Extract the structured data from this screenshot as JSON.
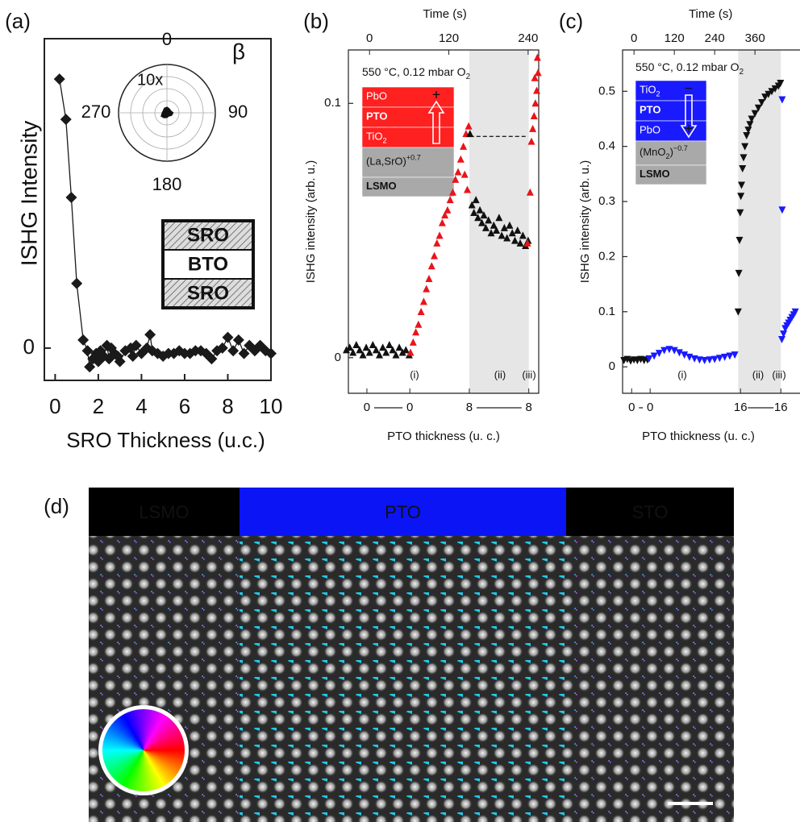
{
  "chart_data": [
    {
      "type": "line",
      "label": "(a)",
      "x_label": "SRO Thickness (u.c.)",
      "y_label": "ISHG Intensity",
      "xlim": [
        -0.5,
        10
      ],
      "xticks": [
        0,
        2,
        4,
        6,
        8,
        10
      ],
      "ylim": [
        -0.12,
        1.15
      ],
      "yticks": [
        0
      ],
      "series": [
        {
          "color": "#1a1a1a",
          "marker": "diamond",
          "x": [
            0.2,
            0.5,
            0.75,
            1.0,
            1.3,
            1.5,
            1.6,
            1.75,
            1.9,
            2.0,
            2.1,
            2.25,
            2.4,
            2.5,
            2.6,
            2.75,
            2.9,
            3.0,
            3.25,
            3.5,
            3.6,
            3.75,
            4.0,
            4.25,
            4.4,
            4.5,
            4.75,
            5.0,
            5.25,
            5.5,
            5.75,
            6.0,
            6.25,
            6.5,
            6.75,
            7.0,
            7.25,
            7.5,
            7.75,
            8.0,
            8.25,
            8.5,
            8.75,
            9.0,
            9.25,
            9.5,
            9.75,
            10.0
          ],
          "values": [
            1.0,
            0.85,
            0.56,
            0.24,
            0.03,
            -0.01,
            -0.07,
            -0.04,
            -0.02,
            -0.05,
            -0.01,
            -0.03,
            0.01,
            -0.04,
            0.0,
            -0.02,
            -0.03,
            -0.05,
            -0.01,
            0.0,
            -0.03,
            0.01,
            -0.02,
            0.0,
            0.05,
            -0.01,
            -0.02,
            -0.03,
            -0.02,
            -0.02,
            -0.01,
            -0.02,
            -0.02,
            -0.01,
            -0.01,
            -0.02,
            -0.04,
            -0.01,
            0.0,
            0.04,
            -0.01,
            0.03,
            -0.02,
            0.01,
            -0.01,
            0.01,
            -0.01,
            -0.02
          ]
        }
      ],
      "inset": {
        "type": "polar",
        "angle_ticks": [
          0,
          90,
          180,
          270
        ],
        "symbol": "β",
        "scale_label": "10x",
        "scale_color": "#e8141a",
        "rlim": [
          0,
          1
        ],
        "theta": [
          0,
          30,
          60,
          90,
          120,
          150,
          180,
          210,
          240,
          270,
          300,
          330
        ],
        "r": [
          0.12,
          0.1,
          0.09,
          0.13,
          0.11,
          0.08,
          0.1,
          0.12,
          0.14,
          0.1,
          0.09,
          0.11
        ]
      },
      "stack": [
        "SRO",
        "BTO",
        "SRO"
      ]
    },
    {
      "type": "scatter",
      "label": "(b)",
      "x_label": "Time (s)",
      "y_label": "ISHG intensity (arb. u.)",
      "thickness_label": "PTO thickness (u. c.)",
      "xlim": [
        -32,
        256
      ],
      "xticks": [
        0,
        120,
        240
      ],
      "ylim": [
        -0.014,
        0.121
      ],
      "yticks": [
        0,
        0.1
      ],
      "thickness_ticks": [
        {
          "value": -4,
          "label": "0"
        },
        {
          "value": 61,
          "label": "0"
        },
        {
          "value": 151,
          "label": "8"
        },
        {
          "value": 241,
          "label": "8"
        }
      ],
      "shaded_x": [
        151,
        241
      ],
      "guide_y": 0.087,
      "guide_x": [
        152,
        240
      ],
      "annotations": [
        "(i)",
        "(ii)",
        "(iii)"
      ],
      "condition": {
        "text": "550 °C, 0.12 mbar O",
        "sub": "2"
      },
      "stack": [
        {
          "text": "PbO",
          "sign": "+",
          "fill": "#ff2020"
        },
        {
          "text": "PTO",
          "fill": "#ff2020"
        },
        {
          "text": "TiO",
          "sub": "2",
          "fill": "#ff2020"
        },
        {
          "text": "(La,SrO)",
          "sup": "+0.7",
          "fill": "#a9a9a9"
        },
        {
          "text": "LSMO",
          "fill": "#a9a9a9"
        }
      ],
      "series": [
        {
          "color": "#111111",
          "marker": "triangle-up",
          "x": [
            -35,
            -30,
            -25,
            -20,
            -15,
            -10,
            -5,
            0,
            5,
            10,
            15,
            20,
            25,
            30,
            35,
            40,
            45,
            50,
            55,
            60
          ],
          "values": [
            0.003,
            0.004,
            0.002,
            0.005,
            0.003,
            0.001,
            0.004,
            0.002,
            0.005,
            0.003,
            0.001,
            0.004,
            0.002,
            0.005,
            0.003,
            0.001,
            0.004,
            0.002,
            0.003,
            0.001
          ]
        },
        {
          "color": "#e8141a",
          "marker": "triangle-up",
          "x": [
            62,
            66,
            70,
            74,
            78,
            82,
            86,
            90,
            94,
            98,
            102,
            106,
            110,
            114,
            118,
            122,
            126,
            130,
            134,
            138,
            142,
            146,
            150,
            148,
            144
          ],
          "values": [
            0.002,
            0.006,
            0.01,
            0.013,
            0.018,
            0.022,
            0.027,
            0.031,
            0.036,
            0.04,
            0.045,
            0.048,
            0.053,
            0.056,
            0.058,
            0.062,
            0.065,
            0.07,
            0.073,
            0.078,
            0.083,
            0.088,
            0.091,
            0.066,
            0.072
          ]
        },
        {
          "color": "#111111",
          "marker": "triangle-up",
          "x": [
            152,
            155,
            158,
            161,
            164,
            167,
            170,
            173,
            176,
            180,
            184,
            188,
            192,
            196,
            200,
            204,
            208,
            212,
            216,
            220,
            224,
            228,
            232,
            236,
            240
          ],
          "values": [
            0.088,
            0.06,
            0.057,
            0.062,
            0.055,
            0.058,
            0.053,
            0.056,
            0.051,
            0.054,
            0.049,
            0.052,
            0.05,
            0.055,
            0.048,
            0.051,
            0.047,
            0.052,
            0.049,
            0.046,
            0.05,
            0.045,
            0.048,
            0.044,
            0.046
          ]
        },
        {
          "color": "#e8141a",
          "marker": "triangle-up",
          "x": [
            239,
            243,
            245,
            247,
            249,
            251,
            253,
            255,
            250,
            254
          ],
          "values": [
            0.045,
            0.065,
            0.085,
            0.09,
            0.095,
            0.1,
            0.105,
            0.112,
            0.11,
            0.118
          ]
        }
      ]
    },
    {
      "type": "scatter",
      "label": "(c)",
      "x_label": "Time (s)",
      "y_label": "ISHG intensity (arb. u.)",
      "thickness_label": "PTO thickness (u. c.)",
      "xlim": [
        -34,
        494
      ],
      "xticks": [
        0,
        120,
        240,
        360
      ],
      "ylim": [
        -0.048,
        0.575
      ],
      "yticks": [
        0,
        0.1,
        0.2,
        0.3,
        0.4,
        0.5
      ],
      "thickness_ticks": [
        {
          "value": -7,
          "label": "0"
        },
        {
          "value": 48,
          "label": "0"
        },
        {
          "value": 317,
          "label": "16"
        },
        {
          "value": 437,
          "label": "16"
        }
      ],
      "shaded_x": [
        310,
        437
      ],
      "annotations": [
        "(i)",
        "(ii)",
        "(iii)"
      ],
      "condition": {
        "text": "550 °C, 0.12 mbar O",
        "sub": "2"
      },
      "stack": [
        {
          "text": "TiO",
          "sub": "2",
          "sign": "−",
          "fill": "#1a1aff"
        },
        {
          "text": "PTO",
          "fill": "#1a1aff"
        },
        {
          "text": "PbO",
          "sign": "+",
          "fill": "#1a1aff"
        },
        {
          "text": "(MnO",
          "sub": "2",
          "post": ")",
          "sup": "−0.7",
          "fill": "#a9a9a9"
        },
        {
          "text": "LSMO",
          "fill": "#a9a9a9"
        }
      ],
      "series": [
        {
          "color": "#111111",
          "marker": "triangle-down",
          "x": [
            -30,
            -20,
            -10,
            0,
            10,
            20,
            30,
            40
          ],
          "values": [
            0.012,
            0.014,
            0.011,
            0.013,
            0.012,
            0.014,
            0.012,
            0.013
          ]
        },
        {
          "color": "#1a1aff",
          "marker": "triangle-down",
          "x": [
            45,
            60,
            75,
            90,
            105,
            120,
            135,
            150,
            165,
            180,
            195,
            210,
            225,
            240,
            255,
            270,
            285,
            300
          ],
          "values": [
            0.015,
            0.02,
            0.025,
            0.03,
            0.032,
            0.03,
            0.026,
            0.022,
            0.018,
            0.015,
            0.013,
            0.012,
            0.013,
            0.014,
            0.016,
            0.018,
            0.02,
            0.022
          ]
        },
        {
          "color": "#111111",
          "marker": "triangle-down",
          "x": [
            310,
            312,
            314,
            316,
            318,
            320,
            323,
            326,
            330,
            335,
            340,
            345,
            350,
            360,
            370,
            380,
            390,
            400,
            410,
            420,
            430,
            436
          ],
          "values": [
            0.1,
            0.17,
            0.23,
            0.28,
            0.31,
            0.33,
            0.36,
            0.38,
            0.4,
            0.42,
            0.43,
            0.44,
            0.45,
            0.46,
            0.47,
            0.48,
            0.49,
            0.495,
            0.5,
            0.505,
            0.51,
            0.515
          ]
        },
        {
          "color": "#1a1aff",
          "marker": "triangle-down",
          "x": [
            441,
            441,
            440,
            445,
            450,
            455,
            460,
            465,
            470,
            475,
            480,
            490
          ],
          "values": [
            0.485,
            0.285,
            0.05,
            0.06,
            0.07,
            0.075,
            0.08,
            0.085,
            0.09,
            0.095,
            0.1,
            0.11
          ]
        }
      ]
    }
  ],
  "image": {
    "label": "(d)",
    "regions": [
      {
        "text": "LSMO",
        "color": "#000000"
      },
      {
        "text": "PTO",
        "color": "#0a14f5"
      },
      {
        "text": "STO",
        "color": "#000000"
      }
    ]
  }
}
